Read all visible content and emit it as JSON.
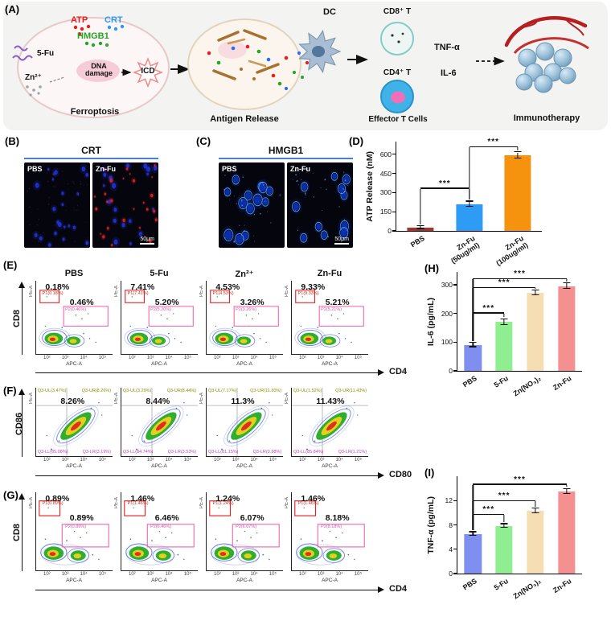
{
  "panels": {
    "A": "(A)",
    "B": "(B)",
    "C": "(C)",
    "D": "(D)",
    "E": "(E)",
    "F": "(F)",
    "G": "(G)",
    "H": "(H)",
    "I": "(I)"
  },
  "schematic": {
    "atp": "ATP",
    "crt": "CRT",
    "hmgb1": "HMGB1",
    "fu": "5-Fu",
    "zn": "Zn²⁺",
    "dna_damage": "DNA damage",
    "icd": "ICD",
    "ferroptosis": "Ferroptosis",
    "antigen_release": "Antigen Release",
    "dc": "DC",
    "cd8t": "CD8⁺ T",
    "cd4t": "CD4⁺ T",
    "tnf": "TNF-α",
    "il6": "IL-6",
    "effector": "Effector T Cells",
    "immunotherapy": "Immunotherapy"
  },
  "microscopy": {
    "B": {
      "title": "CRT",
      "left_label": "PBS",
      "right_label": "Zn-Fu",
      "scalebar": "50μm"
    },
    "C": {
      "title": "HMGB1",
      "left_label": "PBS",
      "right_label": "Zn-Fu",
      "scalebar": "50μm"
    }
  },
  "flow": {
    "axis_x_name": "APC-A",
    "axis_y_name": "PE-A",
    "xticks": [
      "10²",
      "10³",
      "10⁴",
      "10⁵"
    ],
    "E": {
      "ylabel": "CD8",
      "xlabel": "CD4",
      "plots": [
        {
          "title": "PBS",
          "pct1": "0.18%",
          "pct2": "0.46%",
          "gate1": "P1(0.18%)",
          "gate2": "P2(0.46%)"
        },
        {
          "title": "5-Fu",
          "pct1": "7.41%",
          "pct2": "5.20%",
          "gate1": "P1(7.41%)",
          "gate2": "P2(5.20%)"
        },
        {
          "title": "Zn²⁺",
          "pct1": "4.53%",
          "pct2": "3.26%",
          "gate1": "P1(4.53%)",
          "gate2": "P2(3.26%)"
        },
        {
          "title": "Zn-Fu",
          "pct1": "9.33%",
          "pct2": "5.21%",
          "gate1": "P1(9.33%)",
          "gate2": "P2(5.21%)"
        }
      ]
    },
    "F": {
      "ylabel": "CD86",
      "xlabel": "CD80",
      "plots": [
        {
          "pct": "8.26%",
          "ul": "Q3-UL(3.47%)",
          "ur": "Q3-UR(8.26%)",
          "ll": "Q3-LL(85.08%)",
          "lr": "Q3-LR(3.19%)"
        },
        {
          "pct": "8.44%",
          "ul": "Q3-UL(3.29%)",
          "ur": "Q3-UR(8.44%)",
          "ll": "Q3-LL(84.74%)",
          "lr": "Q3-LR(3.53%)"
        },
        {
          "pct": "11.3%",
          "ul": "Q3-UL(7.17%)",
          "ur": "Q3-UR(11.30%)",
          "ll": "Q3-LL(81.15%)",
          "lr": "Q3-LR(0.38%)"
        },
        {
          "pct": "11.43%",
          "ul": "Q3-UL(1.52%)",
          "ur": "Q3-UR(11.43%)",
          "ll": "Q3-LL(85.84%)",
          "lr": "Q3-LR(1.21%)"
        }
      ]
    },
    "G": {
      "ylabel": "CD8",
      "xlabel": "CD4",
      "plots": [
        {
          "pct1": "0.89%",
          "pct2": "0.89%",
          "gate1": "P1(0.89%)",
          "gate2": "P2(0.89%)"
        },
        {
          "pct1": "1.46%",
          "pct2": "6.46%",
          "gate1": "P1(1.46%)",
          "gate2": "P2(6.46%)"
        },
        {
          "pct1": "1.24%",
          "pct2": "6.07%",
          "gate1": "P1(1.24%)",
          "gate2": "P2(6.07%)"
        },
        {
          "pct1": "1.46%",
          "pct2": "8.18%",
          "gate1": "P1(1.46%)",
          "gate2": "P2(8.18%)"
        }
      ]
    }
  },
  "chart_data": [
    {
      "id": "D",
      "type": "bar",
      "ylabel": "ATP Release (nM)",
      "categories": [
        "PBS",
        "Zn-Fu\n(50ug/ml)",
        "Zn-Fu\n(100ug/ml)"
      ],
      "values": [
        25,
        210,
        590
      ],
      "errors": [
        10,
        20,
        25
      ],
      "colors": [
        "#a93226",
        "#2e9bf5",
        "#f5930f"
      ],
      "yticks": [
        0,
        150,
        300,
        450,
        600
      ],
      "ylim": [
        0,
        700
      ],
      "sig": [
        {
          "from": 0,
          "to": 1,
          "label": "***",
          "y": 330
        },
        {
          "from": 1,
          "to": 2,
          "label": "***",
          "y": 655
        }
      ]
    },
    {
      "id": "H",
      "type": "bar",
      "ylabel": "IL-6 (pg/mL)",
      "categories": [
        "PBS",
        "5-Fu",
        "Zn(NO₃)₂",
        "Zn-Fu"
      ],
      "values": [
        90,
        170,
        272,
        295
      ],
      "errors": [
        8,
        10,
        8,
        10
      ],
      "colors": [
        "#7f8ff0",
        "#8fee8f",
        "#f5deb3",
        "#f49090"
      ],
      "yticks": [
        0,
        100,
        200,
        300
      ],
      "ylim": [
        0,
        345
      ],
      "sig": [
        {
          "from": 0,
          "to": 1,
          "label": "***",
          "y": 200
        },
        {
          "from": 0,
          "to": 2,
          "label": "***",
          "y": 288
        },
        {
          "from": 0,
          "to": 3,
          "label": "***",
          "y": 320
        }
      ]
    },
    {
      "id": "I",
      "type": "bar",
      "ylabel": "TNF-α (pg/mL)",
      "categories": [
        "PBS",
        "5-Fu",
        "Zn(NO₃)₂",
        "Zn-Fu"
      ],
      "values": [
        6.5,
        7.8,
        10.3,
        13.5
      ],
      "errors": [
        0.3,
        0.3,
        0.4,
        0.4
      ],
      "colors": [
        "#7f8ff0",
        "#8fee8f",
        "#f5deb3",
        "#f49090"
      ],
      "yticks": [
        0,
        4,
        8,
        12
      ],
      "ylim": [
        0,
        16
      ],
      "sig": [
        {
          "from": 0,
          "to": 1,
          "label": "***",
          "y": 9.6
        },
        {
          "from": 0,
          "to": 2,
          "label": "***",
          "y": 11.9
        },
        {
          "from": 0,
          "to": 3,
          "label": "***",
          "y": 14.6
        }
      ]
    }
  ]
}
